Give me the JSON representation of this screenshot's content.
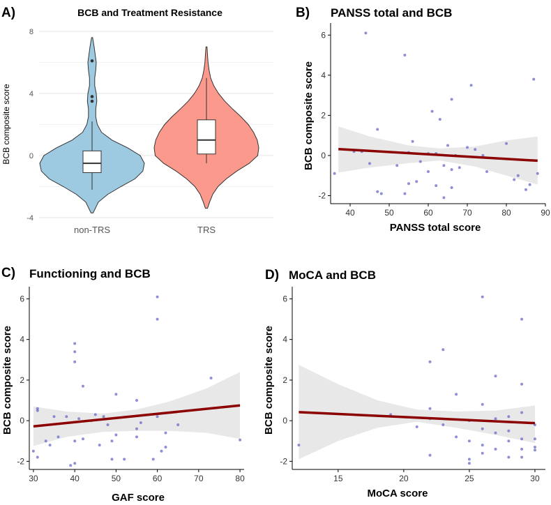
{
  "figure": {
    "colors": {
      "violin_nontrs": "#9ecae1",
      "violin_trs": "#fb9a8c",
      "point": "#6a6ac8",
      "reg_line": "#8b0000",
      "band": "#e8e8e8",
      "grid": "#e4e4e4"
    }
  },
  "chart_data": [
    {
      "label": "A)",
      "type": "violin",
      "title": "BCB and Treatment Resistance",
      "xlabel": "",
      "ylabel": "BCB composite score",
      "ylim": [
        -4,
        8
      ],
      "yticks": [
        "-4",
        "0",
        "4",
        "8"
      ],
      "categories": [
        "non-TRS",
        "TRS"
      ],
      "groups": [
        {
          "name": "non-TRS",
          "box": {
            "min": -2.2,
            "q1": -1.1,
            "median": -0.5,
            "q3": 0.3,
            "max": 2.2
          },
          "outliers": [
            6.1,
            3.8,
            3.5
          ],
          "density": [
            [
              -3.7,
              0.02
            ],
            [
              -3.0,
              0.12
            ],
            [
              -2.5,
              0.3
            ],
            [
              -2.0,
              0.55
            ],
            [
              -1.5,
              0.82
            ],
            [
              -1.0,
              0.97
            ],
            [
              -0.5,
              1.0
            ],
            [
              0,
              0.92
            ],
            [
              0.5,
              0.68
            ],
            [
              1.0,
              0.38
            ],
            [
              1.5,
              0.18
            ],
            [
              2.0,
              0.1
            ],
            [
              2.5,
              0.07
            ],
            [
              3.0,
              0.07
            ],
            [
              3.5,
              0.09
            ],
            [
              4.0,
              0.08
            ],
            [
              4.5,
              0.05
            ],
            [
              5.0,
              0.05
            ],
            [
              5.5,
              0.07
            ],
            [
              6.0,
              0.08
            ],
            [
              6.5,
              0.06
            ],
            [
              7.0,
              0.04
            ],
            [
              7.6,
              0.01
            ]
          ]
        },
        {
          "name": "TRS",
          "box": {
            "min": -0.5,
            "q1": 0.1,
            "median": 1.0,
            "q3": 2.3,
            "max": 5.0
          },
          "outliers": [],
          "density": [
            [
              -3.4,
              0.02
            ],
            [
              -3.0,
              0.06
            ],
            [
              -2.5,
              0.12
            ],
            [
              -2.0,
              0.22
            ],
            [
              -1.5,
              0.38
            ],
            [
              -1.0,
              0.58
            ],
            [
              -0.5,
              0.82
            ],
            [
              0,
              0.98
            ],
            [
              0.5,
              1.0
            ],
            [
              1.0,
              0.97
            ],
            [
              1.5,
              0.9
            ],
            [
              2.0,
              0.8
            ],
            [
              2.5,
              0.66
            ],
            [
              3.0,
              0.5
            ],
            [
              3.5,
              0.35
            ],
            [
              4.0,
              0.23
            ],
            [
              4.5,
              0.14
            ],
            [
              5.0,
              0.08
            ],
            [
              5.5,
              0.05
            ],
            [
              6.0,
              0.03
            ],
            [
              6.5,
              0.02
            ],
            [
              7.0,
              0.01
            ]
          ]
        }
      ]
    },
    {
      "label": "B)",
      "type": "scatter",
      "title": "PANSS total and BCB",
      "xlabel": "PANSS total score",
      "ylabel": "BCB composite score",
      "xlim": [
        35,
        90
      ],
      "ylim": [
        -2.4,
        6.6
      ],
      "xticks": [
        40,
        50,
        60,
        70,
        80,
        90
      ],
      "yticks": [
        -2,
        0,
        2,
        4,
        6
      ],
      "regression": {
        "x": [
          37,
          88
        ],
        "y": [
          0.32,
          -0.26
        ]
      },
      "band_upper": [
        [
          37,
          1.45
        ],
        [
          45,
          0.95
        ],
        [
          55,
          0.5
        ],
        [
          63,
          0.35
        ],
        [
          72,
          0.45
        ],
        [
          80,
          0.75
        ],
        [
          88,
          0.95
        ]
      ],
      "band_lower": [
        [
          37,
          -0.85
        ],
        [
          45,
          -0.6
        ],
        [
          55,
          -0.38
        ],
        [
          63,
          -0.25
        ],
        [
          72,
          -0.55
        ],
        [
          80,
          -1.0
        ],
        [
          88,
          -1.45
        ]
      ],
      "points": [
        [
          44,
          6.1
        ],
        [
          54,
          5.0
        ],
        [
          87,
          3.8
        ],
        [
          71,
          3.5
        ],
        [
          66,
          2.8
        ],
        [
          61,
          2.2
        ],
        [
          63,
          1.8
        ],
        [
          47,
          1.3
        ],
        [
          80,
          0.6
        ],
        [
          56,
          0.7
        ],
        [
          65,
          0.5
        ],
        [
          70,
          0.4
        ],
        [
          72,
          0.3
        ],
        [
          43,
          0.2
        ],
        [
          41,
          0.2
        ],
        [
          55,
          0.15
        ],
        [
          60,
          0.1
        ],
        [
          62,
          0.1
        ],
        [
          74,
          0.0
        ],
        [
          45,
          -0.4
        ],
        [
          52,
          -0.5
        ],
        [
          58,
          -0.3
        ],
        [
          64,
          -0.5
        ],
        [
          66,
          -0.7
        ],
        [
          68,
          -0.6
        ],
        [
          75,
          -0.8
        ],
        [
          83,
          -1.0
        ],
        [
          88,
          -0.9
        ],
        [
          55,
          -1.4
        ],
        [
          57,
          -1.3
        ],
        [
          62,
          -1.5
        ],
        [
          66,
          -1.6
        ],
        [
          85,
          -1.7
        ],
        [
          47,
          -1.8
        ],
        [
          48,
          -1.9
        ],
        [
          54,
          -1.9
        ],
        [
          64,
          -2.1
        ],
        [
          36,
          -0.9
        ],
        [
          82,
          -1.2
        ],
        [
          86,
          -1.45
        ],
        [
          67,
          0.0
        ],
        [
          60,
          -0.8
        ]
      ]
    },
    {
      "label": "C)",
      "type": "scatter",
      "title": "Functioning and BCB",
      "xlabel": "GAF score",
      "ylabel": "BCB composite score",
      "xlim": [
        29,
        81
      ],
      "ylim": [
        -2.4,
        6.6
      ],
      "xticks": [
        30,
        40,
        50,
        60,
        70,
        80
      ],
      "yticks": [
        -2,
        0,
        2,
        4,
        6
      ],
      "regression": {
        "x": [
          30,
          80
        ],
        "y": [
          -0.28,
          0.75
        ]
      },
      "band_upper": [
        [
          30,
          0.7
        ],
        [
          38,
          0.45
        ],
        [
          47,
          0.35
        ],
        [
          55,
          0.55
        ],
        [
          63,
          0.95
        ],
        [
          72,
          1.6
        ],
        [
          80,
          2.4
        ]
      ],
      "band_lower": [
        [
          30,
          -1.25
        ],
        [
          38,
          -0.8
        ],
        [
          47,
          -0.55
        ],
        [
          55,
          -0.5
        ],
        [
          63,
          -0.5
        ],
        [
          72,
          -0.6
        ],
        [
          80,
          -0.9
        ]
      ],
      "points": [
        [
          60,
          6.1
        ],
        [
          60,
          5.0
        ],
        [
          40,
          3.8
        ],
        [
          40,
          3.4
        ],
        [
          40,
          2.9
        ],
        [
          73,
          2.1
        ],
        [
          42,
          1.7
        ],
        [
          50,
          1.3
        ],
        [
          55,
          1.0
        ],
        [
          31,
          0.6
        ],
        [
          31,
          0.5
        ],
        [
          35,
          0.2
        ],
        [
          38,
          0.2
        ],
        [
          41,
          0.1
        ],
        [
          44,
          0.0
        ],
        [
          47,
          0.2
        ],
        [
          45,
          0.3
        ],
        [
          48,
          -0.2
        ],
        [
          56,
          -0.1
        ],
        [
          60,
          0.2
        ],
        [
          65,
          -0.2
        ],
        [
          50,
          -0.7
        ],
        [
          55,
          -0.8
        ],
        [
          62,
          -0.6
        ],
        [
          33,
          -1.0
        ],
        [
          36,
          -0.8
        ],
        [
          40,
          -1.0
        ],
        [
          42,
          -0.9
        ],
        [
          49,
          -1.0
        ],
        [
          46,
          -1.2
        ],
        [
          62,
          -1.3
        ],
        [
          61,
          -1.5
        ],
        [
          30,
          -1.5
        ],
        [
          31,
          -1.8
        ],
        [
          52,
          -1.9
        ],
        [
          49,
          -1.9
        ],
        [
          59,
          -1.9
        ],
        [
          40,
          -2.1
        ],
        [
          39,
          -2.2
        ],
        [
          80,
          -0.95
        ],
        [
          34,
          -1.2
        ],
        [
          55,
          -0.4
        ]
      ]
    },
    {
      "label": "D)",
      "type": "scatter",
      "title": "MoCA and BCB",
      "xlabel": "MoCA score",
      "ylabel": "BCB composite score",
      "xlim": [
        11.5,
        30.8
      ],
      "ylim": [
        -2.4,
        6.6
      ],
      "xticks": [
        15,
        20,
        25,
        30
      ],
      "yticks": [
        -2,
        0,
        2,
        4,
        6
      ],
      "regression": {
        "x": [
          12,
          30
        ],
        "y": [
          0.42,
          -0.12
        ]
      },
      "band_upper": [
        [
          12,
          2.75
        ],
        [
          15,
          1.8
        ],
        [
          18,
          1.0
        ],
        [
          21,
          0.55
        ],
        [
          24,
          0.45
        ],
        [
          27,
          0.5
        ],
        [
          30,
          0.75
        ]
      ],
      "band_lower": [
        [
          12,
          -1.9
        ],
        [
          15,
          -1.0
        ],
        [
          18,
          -0.35
        ],
        [
          21,
          -0.05
        ],
        [
          24,
          -0.35
        ],
        [
          27,
          -0.7
        ],
        [
          30,
          -1.1
        ]
      ],
      "points": [
        [
          26,
          6.1
        ],
        [
          29,
          5.0
        ],
        [
          23,
          3.5
        ],
        [
          22,
          2.9
        ],
        [
          27,
          2.2
        ],
        [
          29,
          1.8
        ],
        [
          24,
          1.3
        ],
        [
          26,
          0.8
        ],
        [
          22,
          0.6
        ],
        [
          29,
          0.4
        ],
        [
          28,
          0.2
        ],
        [
          27,
          0.1
        ],
        [
          25,
          0.0
        ],
        [
          22,
          0.1
        ],
        [
          19,
          0.3
        ],
        [
          21,
          -0.3
        ],
        [
          23,
          -0.2
        ],
        [
          26,
          -0.4
        ],
        [
          27,
          -0.6
        ],
        [
          28,
          -0.5
        ],
        [
          29,
          -0.9
        ],
        [
          30,
          -0.9
        ],
        [
          25,
          -1.0
        ],
        [
          26,
          -1.2
        ],
        [
          28,
          -1.0
        ],
        [
          30,
          -1.3
        ],
        [
          30,
          -1.45
        ],
        [
          27,
          -1.4
        ],
        [
          29,
          -1.8
        ],
        [
          25,
          -1.9
        ],
        [
          25,
          -2.1
        ],
        [
          22,
          -1.7
        ],
        [
          28,
          -1.8
        ],
        [
          12,
          -1.2
        ],
        [
          30,
          -0.2
        ],
        [
          24,
          -0.8
        ],
        [
          29,
          -1.4
        ],
        [
          26,
          -1.6
        ]
      ]
    }
  ]
}
